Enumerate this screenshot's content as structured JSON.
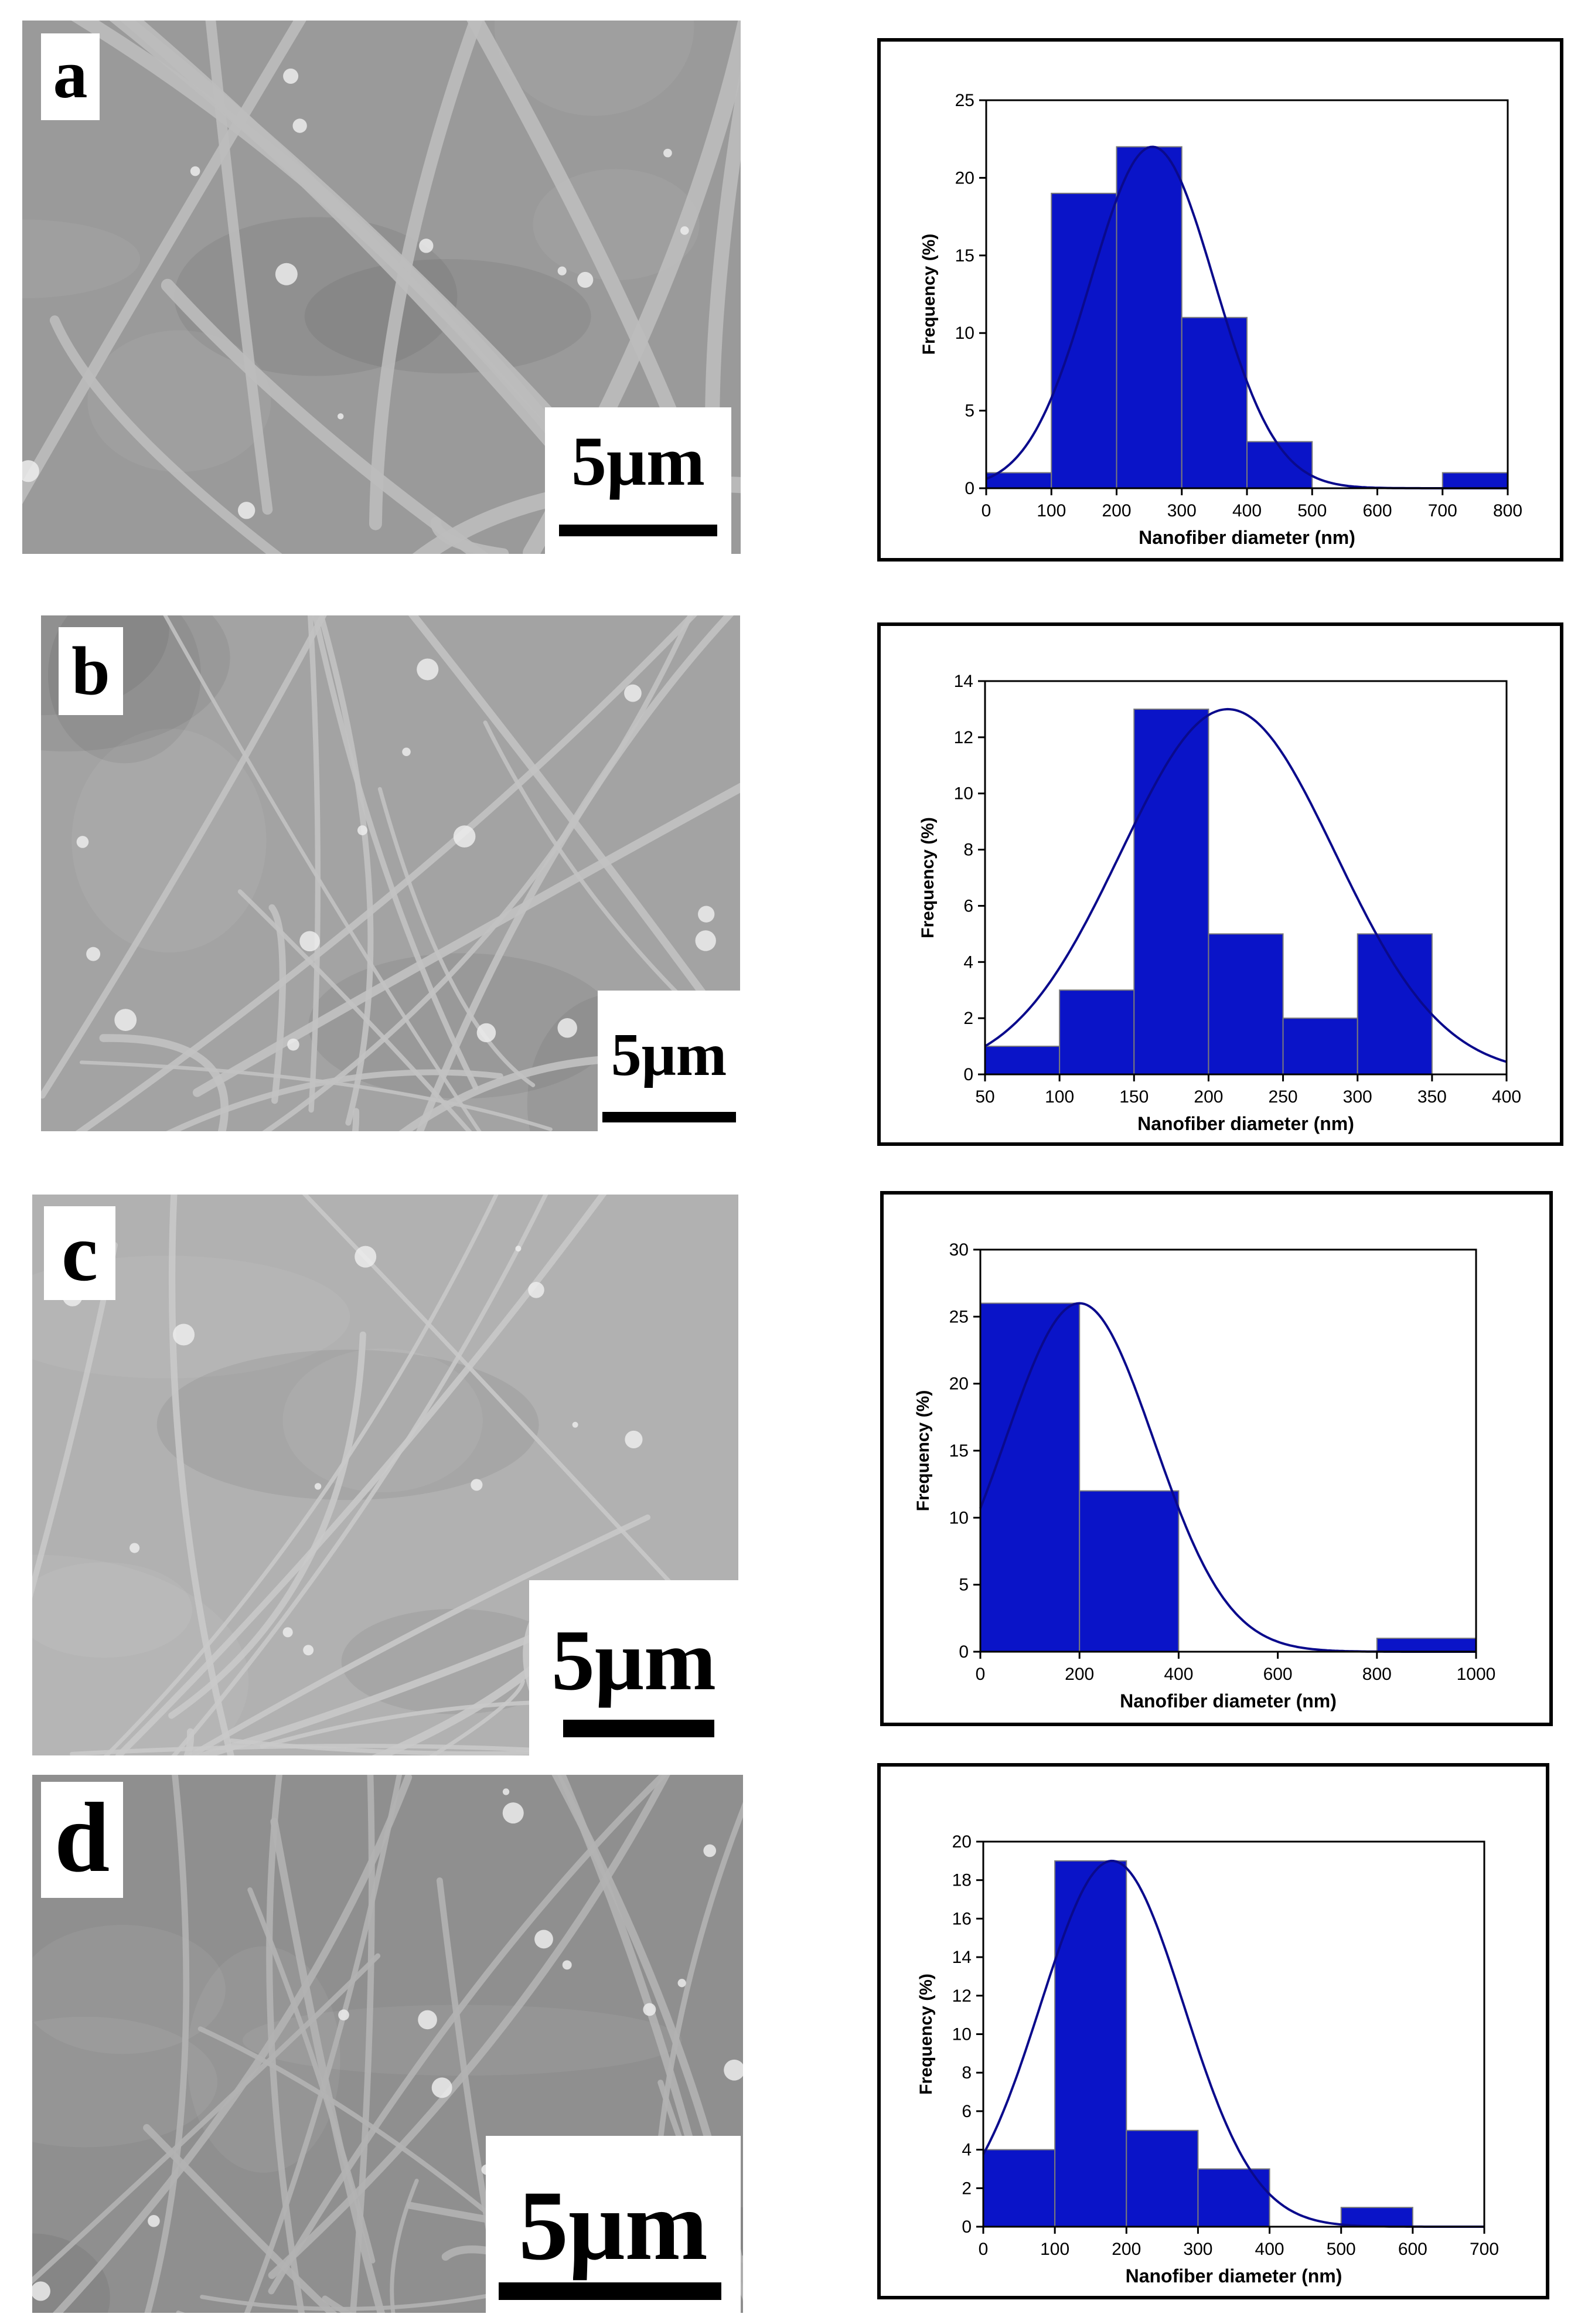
{
  "colors": {
    "bar_fill": "#0a14c8",
    "bar_stroke": "#7a7a7a",
    "curve": "#0a0a8c",
    "frame": "#000000"
  },
  "panels": [
    {
      "letter": "a",
      "scale_label": "5μm"
    },
    {
      "letter": "b",
      "scale_label": "5μm"
    },
    {
      "letter": "c",
      "scale_label": "5μm"
    },
    {
      "letter": "d",
      "scale_label": "5μm"
    }
  ],
  "chart_data": [
    {
      "type": "bar",
      "title": "",
      "xlabel": "Nanofiber diameter (nm)",
      "ylabel": "Frequency (%)",
      "xlim": [
        0,
        800
      ],
      "ylim": [
        0,
        25
      ],
      "xticks": [
        0,
        100,
        200,
        300,
        400,
        500,
        600,
        700,
        800
      ],
      "yticks": [
        0,
        5,
        10,
        15,
        20,
        25
      ],
      "bins": [
        [
          0,
          100,
          1
        ],
        [
          100,
          200,
          19
        ],
        [
          200,
          300,
          22
        ],
        [
          300,
          400,
          11
        ],
        [
          400,
          500,
          3
        ],
        [
          700,
          800,
          1
        ]
      ],
      "fit": {
        "mean": 255,
        "sd": 95,
        "peak": 22
      },
      "grid": false
    },
    {
      "type": "bar",
      "title": "",
      "xlabel": "Nanofiber diameter (nm)",
      "ylabel": "Frequency (%)",
      "xlim": [
        50,
        400
      ],
      "ylim": [
        0,
        14
      ],
      "xticks": [
        50,
        100,
        150,
        200,
        250,
        300,
        350,
        400
      ],
      "yticks": [
        0,
        2,
        4,
        6,
        8,
        10,
        12,
        14
      ],
      "bins": [
        [
          50,
          100,
          1
        ],
        [
          100,
          150,
          3
        ],
        [
          150,
          200,
          13
        ],
        [
          200,
          250,
          5
        ],
        [
          250,
          300,
          2
        ],
        [
          300,
          350,
          5
        ]
      ],
      "fit": {
        "mean": 213,
        "sd": 72,
        "peak": 13
      },
      "grid": false
    },
    {
      "type": "bar",
      "title": "",
      "xlabel": "Nanofiber diameter (nm)",
      "ylabel": "Frequency (%)",
      "xlim": [
        0,
        1000
      ],
      "ylim": [
        0,
        30
      ],
      "xticks": [
        0,
        200,
        400,
        600,
        800,
        1000
      ],
      "yticks": [
        0,
        5,
        10,
        15,
        20,
        25,
        30
      ],
      "bins": [
        [
          0,
          200,
          26
        ],
        [
          200,
          400,
          12
        ],
        [
          800,
          1000,
          1
        ]
      ],
      "fit": {
        "mean": 200,
        "sd": 150,
        "peak": 26
      },
      "grid": false
    },
    {
      "type": "bar",
      "title": "",
      "xlabel": "Nanofiber diameter (nm)",
      "ylabel": "Frequency (%)",
      "xlim": [
        0,
        700
      ],
      "ylim": [
        0,
        20
      ],
      "xticks": [
        0,
        100,
        200,
        300,
        400,
        500,
        600,
        700
      ],
      "yticks": [
        0,
        2,
        4,
        6,
        8,
        10,
        12,
        14,
        16,
        18,
        20
      ],
      "bins": [
        [
          0,
          100,
          4
        ],
        [
          100,
          200,
          19
        ],
        [
          200,
          300,
          5
        ],
        [
          300,
          400,
          3
        ],
        [
          500,
          600,
          1
        ]
      ],
      "fit": {
        "mean": 180,
        "sd": 100,
        "peak": 19
      },
      "grid": false
    }
  ]
}
